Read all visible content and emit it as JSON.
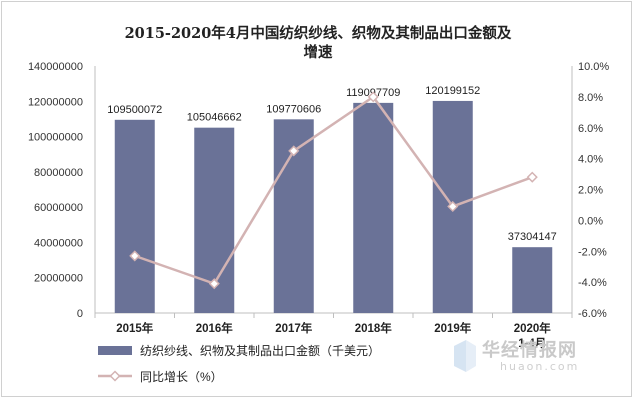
{
  "chart_data": {
    "type": "bar+line",
    "title_lines": [
      "2015-2020年4月中国纺织纱线、织物及其制品出口金额及",
      "增速"
    ],
    "categories": [
      "2015年",
      "2016年",
      "2017年",
      "2018年",
      "2019年",
      "2020年\n1-4月"
    ],
    "bar_series": {
      "name": "纺织纱线、织物及其制品出口金额（千美元）",
      "values": [
        109500072,
        105046662,
        109770606,
        119097709,
        120199152,
        37304147
      ],
      "value_labels": [
        "109500072",
        "105046662",
        "109770606",
        "119097709",
        "120199152",
        "37304147"
      ],
      "color": "#6a7297"
    },
    "line_series": {
      "name": "同比增长（%）",
      "values": [
        -2.3,
        -4.1,
        4.5,
        8.0,
        0.9,
        2.8
      ],
      "color": "#d3b3b3"
    },
    "y_left": {
      "min": 0,
      "max": 140000000,
      "step": 20000000,
      "tick_labels": [
        "0",
        "20000000",
        "40000000",
        "60000000",
        "80000000",
        "100000000",
        "120000000",
        "140000000"
      ]
    },
    "y_right": {
      "min": -6.0,
      "max": 10.0,
      "step": 2.0,
      "tick_labels": [
        "-6.0%",
        "-4.0%",
        "-2.0%",
        "0.0%",
        "2.0%",
        "4.0%",
        "6.0%",
        "8.0%",
        "10.0%"
      ]
    },
    "grid": false,
    "legend_position": "bottom-left"
  },
  "watermark": {
    "text": "华经情报网",
    "url": "huaon.com"
  }
}
